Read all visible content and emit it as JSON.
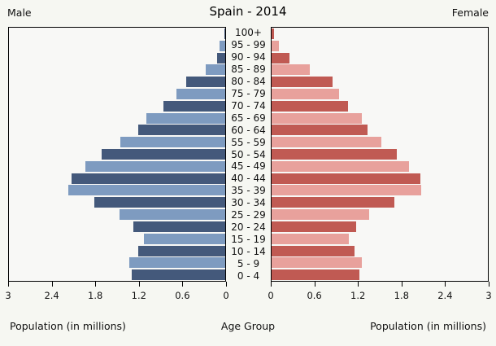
{
  "title": "Spain - 2014",
  "left_header": "Male",
  "right_header": "Female",
  "xlabel_left": "Population (in millions)",
  "xlabel_center": "Age Group",
  "xlabel_right": "Population (in millions)",
  "colors": {
    "male_dark": "#44597B",
    "male_light": "#7E9BC0",
    "female_dark": "#C05A53",
    "female_light": "#E8A19C",
    "figure_bg": "#F6F7F2",
    "panel_bg": "#F8F8F6",
    "border": "#000000"
  },
  "chart_data": {
    "type": "bar",
    "subtype": "population-pyramid",
    "title": "Spain - 2014",
    "orientation": "horizontal",
    "grid": false,
    "categories_bottom_to_top": [
      "0 - 4",
      "5 - 9",
      "10 - 14",
      "15 - 19",
      "20 - 24",
      "25 - 29",
      "30 - 34",
      "35 - 39",
      "40 - 44",
      "45 - 49",
      "50 - 54",
      "55 - 59",
      "60 - 64",
      "65 - 69",
      "70 - 74",
      "75 - 79",
      "80 - 84",
      "85 - 89",
      "90 - 94",
      "95 - 99",
      "100+"
    ],
    "series": [
      {
        "name": "Male",
        "side": "left",
        "values_bottom_to_top": [
          1.3,
          1.33,
          1.21,
          1.13,
          1.27,
          1.47,
          1.82,
          2.18,
          2.13,
          1.94,
          1.71,
          1.46,
          1.21,
          1.09,
          0.86,
          0.68,
          0.54,
          0.27,
          0.11,
          0.08,
          0.01
        ]
      },
      {
        "name": "Female",
        "side": "right",
        "values_bottom_to_top": [
          1.22,
          1.25,
          1.15,
          1.07,
          1.17,
          1.35,
          1.7,
          2.08,
          2.06,
          1.91,
          1.74,
          1.52,
          1.33,
          1.25,
          1.06,
          0.94,
          0.85,
          0.53,
          0.25,
          0.1,
          0.03
        ]
      }
    ],
    "xlim": [
      0,
      3
    ],
    "tick_values": [
      0,
      0.6,
      1.2,
      1.8,
      2.4,
      3
    ],
    "tick_labels_left": [
      "3",
      "2.4",
      "1.8",
      "1.2",
      "0.6",
      "0"
    ],
    "tick_labels_right": [
      "0",
      "0.6",
      "1.2",
      "1.8",
      "2.4",
      "3"
    ],
    "xlabel": "Population (in millions)",
    "center_axis_label": "Age Group",
    "bar_color_rule": "alternating dark/light per age row, dark at 0-4"
  }
}
